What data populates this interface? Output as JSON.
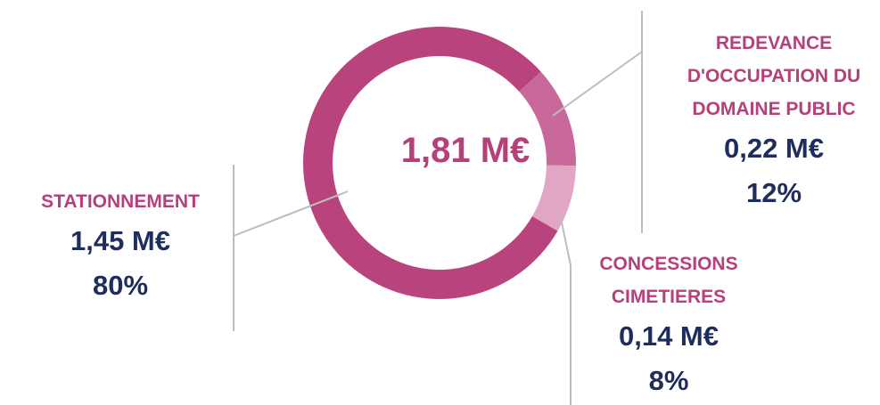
{
  "chart_data": {
    "type": "donut",
    "center_label": "1,81 M€",
    "categories": [
      "STATIONNEMENT",
      "REDEVANCE D'OCCUPATION DU DOMAINE PUBLIC",
      "CONCESSIONS CIMETIERES"
    ],
    "values": [
      80,
      12,
      8
    ],
    "value_labels": [
      "80%",
      "12%",
      "8%"
    ],
    "amount_labels": [
      "1,45 M€",
      "0,22 M€",
      "0,14 M€"
    ],
    "colors": [
      "#b9437c",
      "#c9689a",
      "#e2a6c5"
    ]
  }
}
